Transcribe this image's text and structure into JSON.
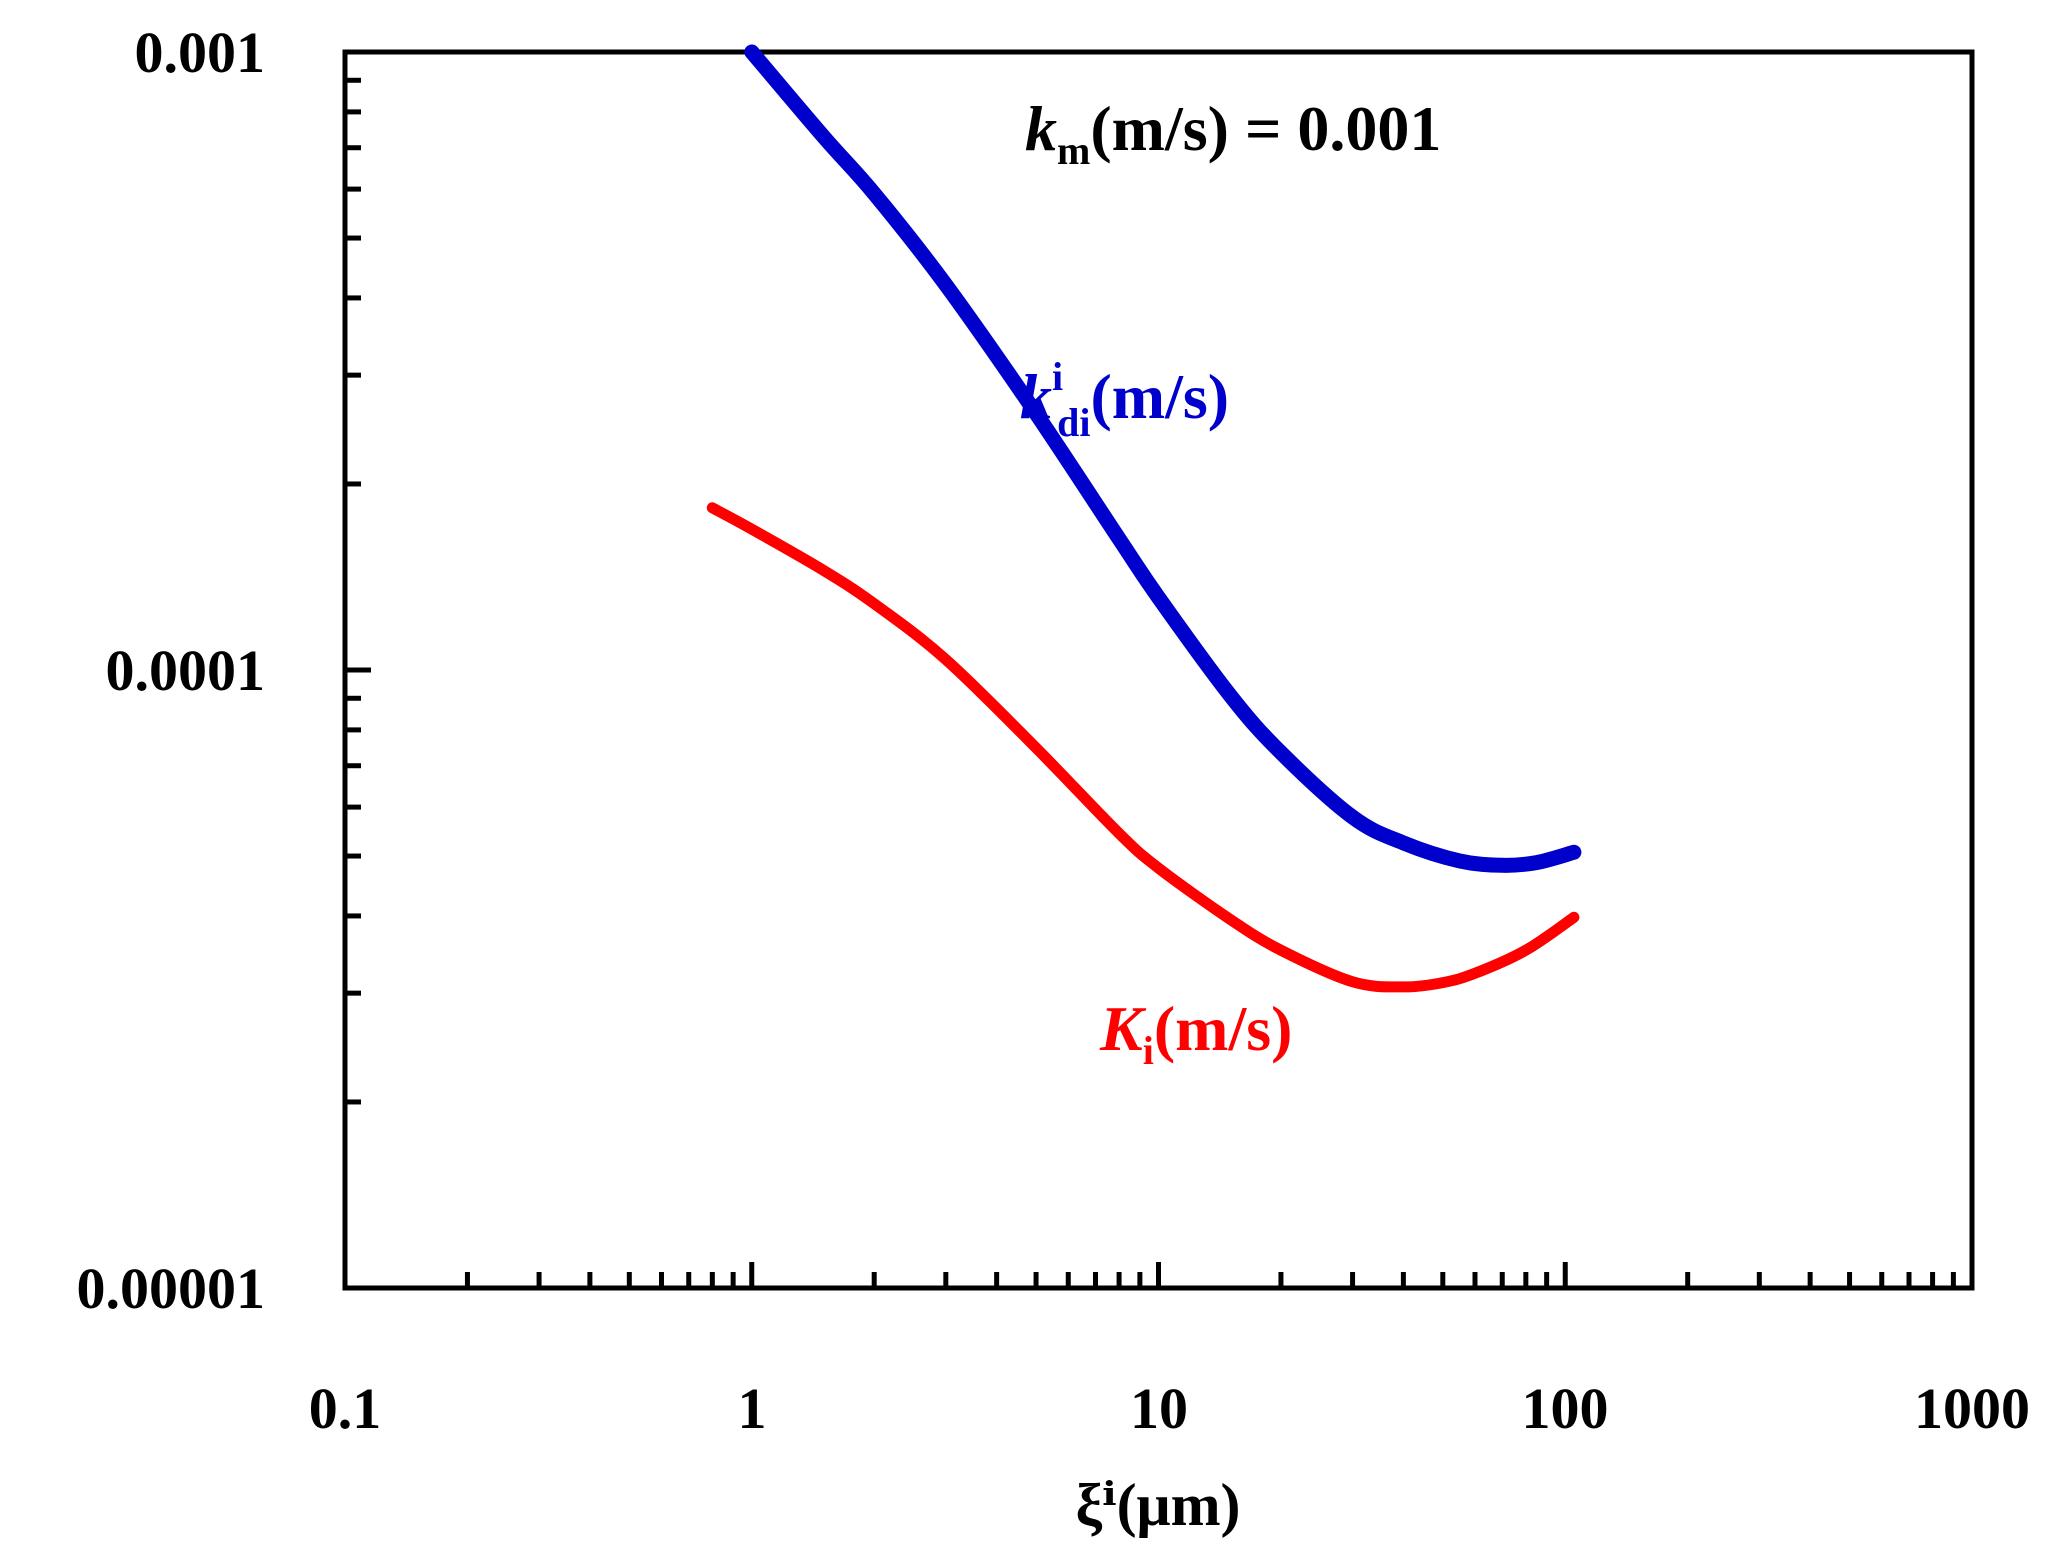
{
  "chart_data": {
    "type": "line",
    "title": "",
    "xlabel": "ξⁱ(μm)",
    "ylabel": "",
    "xscale": "log",
    "yscale": "log",
    "xlim": [
      0.1,
      1000
    ],
    "ylim": [
      1e-05,
      0.001
    ],
    "x_tick_labels": [
      "0.1",
      "1",
      "10",
      "100",
      "1000"
    ],
    "y_tick_labels": [
      "0.00001",
      "0.0001",
      "0.001"
    ],
    "grid": false,
    "legend": "none",
    "annotations": {
      "km": {
        "italic": "k",
        "sub": "m",
        "rest": "(m/s) = 0.001"
      },
      "kdi": {
        "italic": "k",
        "sup": "i",
        "sub": "di",
        "rest": "(m/s)"
      },
      "Ki": {
        "italic": "K",
        "sub": "i",
        "rest": "(m/s)"
      }
    },
    "series": [
      {
        "name": "k_di^i(m/s)",
        "color": "#0000cc",
        "x": [
          1,
          1.5,
          2,
          3,
          5,
          8,
          10,
          15,
          20,
          30,
          40,
          55,
          70,
          85,
          105
        ],
        "y": [
          0.001,
          0.00073,
          0.00059,
          0.00042,
          0.00026,
          0.000163,
          0.000131,
          9.1e-05,
          7.35e-05,
          5.78e-05,
          5.25e-05,
          4.91e-05,
          4.83e-05,
          4.88e-05,
          5.07e-05
        ]
      },
      {
        "name": "K_i(m/s)",
        "color": "#ff0000",
        "x": [
          0.8,
          1,
          1.5,
          2,
          3,
          5,
          8,
          10,
          15,
          20,
          30,
          40,
          50,
          60,
          80,
          105
        ],
        "y": [
          0.000183,
          0.000169,
          0.000145,
          0.000128,
          0.000104,
          7.48e-05,
          5.44e-05,
          4.78e-05,
          3.95e-05,
          3.52e-05,
          3.13e-05,
          3.07e-05,
          3.12e-05,
          3.23e-05,
          3.52e-05,
          3.98e-05
        ]
      }
    ]
  },
  "colors": {
    "blue_series": "#0000cc",
    "red_series": "#ff0000",
    "axis": "#000000"
  }
}
